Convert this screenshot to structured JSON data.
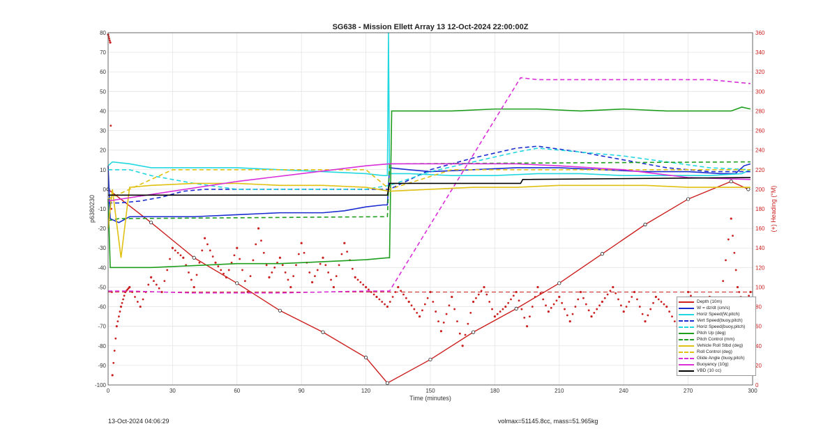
{
  "chart_data": {
    "type": "line",
    "title": "SG638 - Mission Ellett Array 13 12-Oct-2024 22:00:00Z",
    "xlabel": "Time (minutes)",
    "ylabel": "p6380230",
    "y2label": "(+) Heading (°M)",
    "xlim": [
      0,
      300
    ],
    "ylim": [
      -100,
      80
    ],
    "y2lim": [
      0,
      360
    ],
    "xticks": [
      0,
      30,
      60,
      90,
      120,
      150,
      180,
      210,
      240,
      270,
      300
    ],
    "yticks": [
      -100,
      -90,
      -80,
      -70,
      -60,
      -50,
      -40,
      -30,
      -20,
      -10,
      0,
      10,
      20,
      30,
      40,
      50,
      60,
      70,
      80
    ],
    "y2ticks": [
      0,
      20,
      40,
      60,
      80,
      100,
      120,
      140,
      160,
      180,
      200,
      220,
      240,
      260,
      280,
      300,
      320,
      340,
      360
    ],
    "grid": true,
    "legend_position": "bottom-right",
    "series": [
      {
        "name": "Depth (10m)",
        "color": "#cc1f1f",
        "style": "solid-markers",
        "x": [
          0,
          20,
          40,
          60,
          80,
          100,
          120,
          130,
          150,
          170,
          190,
          210,
          230,
          250,
          270,
          290,
          298
        ],
        "y": [
          0,
          -17,
          -35,
          -48,
          -62,
          -73,
          -86,
          -99,
          -87,
          -73,
          -61,
          -48,
          -33,
          -18,
          -5,
          4,
          0
        ]
      },
      {
        "name": "W = dz/dt (cm/s)",
        "color": "#1a2bd0",
        "style": "solid",
        "x": [
          0,
          1,
          5,
          10,
          20,
          30,
          40,
          60,
          80,
          100,
          110,
          120,
          128,
          130,
          131,
          140,
          150,
          170,
          190,
          210,
          230,
          250,
          270,
          285,
          292,
          296,
          299
        ],
        "y": [
          12,
          -15,
          -17,
          -14,
          -14,
          -14,
          -14,
          -13,
          -12,
          -12,
          -11,
          -9,
          -8,
          -8,
          11,
          10,
          9,
          10,
          11,
          11,
          10,
          9,
          9,
          8,
          8,
          12,
          13
        ]
      },
      {
        "name": "Horiz Speed(W,pitch)",
        "color": "#22d8e0",
        "style": "solid",
        "x": [
          0,
          2,
          10,
          20,
          40,
          60,
          80,
          100,
          120,
          128,
          130,
          130.5,
          131,
          140,
          160,
          180,
          200,
          220,
          240,
          260,
          280,
          295,
          299
        ],
        "y": [
          12,
          14,
          13,
          11,
          11,
          11,
          10,
          9,
          8,
          7,
          7,
          80,
          8,
          8,
          7,
          7,
          8,
          8,
          7,
          7,
          7,
          8,
          10
        ]
      },
      {
        "name": "Vert Speed(buoy,pitch)",
        "color": "#1a2bd0",
        "style": "dashed",
        "x": [
          0,
          5,
          15,
          25,
          35,
          45,
          60,
          80,
          100,
          120,
          131,
          150,
          170,
          190,
          200,
          220,
          240,
          260,
          280,
          299
        ],
        "y": [
          -7,
          -7,
          -6,
          -4,
          -1,
          0,
          0,
          0,
          0,
          0,
          0,
          10,
          16,
          21,
          22,
          19,
          15,
          11,
          9,
          9
        ]
      },
      {
        "name": "Horiz Speed(buoy,pitch)",
        "color": "#22d8e0",
        "style": "dashed",
        "x": [
          0,
          10,
          20,
          40,
          60,
          80,
          100,
          120,
          131,
          150,
          170,
          190,
          200,
          220,
          240,
          260,
          280,
          299
        ],
        "y": [
          10,
          10,
          7,
          3,
          0,
          0,
          0,
          0,
          2,
          9,
          14,
          19,
          21,
          19,
          17,
          14,
          11,
          10
        ]
      },
      {
        "name": "Pitch Up (deg)",
        "color": "#1d9e1d",
        "style": "solid",
        "x": [
          0,
          1,
          5,
          20,
          40,
          60,
          80,
          100,
          120,
          130,
          131,
          132,
          140,
          160,
          180,
          200,
          220,
          240,
          260,
          280,
          290,
          295,
          299
        ],
        "y": [
          -5,
          -40,
          -40,
          -40,
          -39,
          -38,
          -38,
          -37,
          -36,
          -35,
          -35,
          40,
          40,
          40,
          41,
          41,
          40,
          41,
          40,
          40,
          40,
          42,
          41
        ]
      },
      {
        "name": "Pitch Control (mm)",
        "color": "#1d9e1d",
        "style": "dashed",
        "x": [
          0,
          5,
          130,
          131,
          299
        ],
        "y": [
          -16,
          -15,
          -14,
          13,
          14
        ]
      },
      {
        "name": "Vehicle Roll Stbd (deg)",
        "color": "#e0c010",
        "style": "solid",
        "x": [
          0,
          2,
          6,
          10,
          20,
          40,
          60,
          80,
          100,
          120,
          131,
          150,
          170,
          190,
          210,
          230,
          250,
          270,
          290,
          299
        ],
        "y": [
          -20,
          0,
          -35,
          1,
          2,
          3,
          3,
          2,
          2,
          1,
          -1,
          0,
          1,
          1,
          2,
          2,
          2,
          1,
          1,
          1
        ]
      },
      {
        "name": "Roll Control (deg)",
        "color": "#e0c010",
        "style": "dashed",
        "x": [
          0,
          10,
          30,
          60,
          90,
          120,
          131,
          160,
          190,
          220,
          250,
          280,
          299
        ],
        "y": [
          -5,
          0,
          10,
          10,
          10,
          10,
          0,
          10,
          10,
          10,
          10,
          10,
          10
        ]
      },
      {
        "name": "Glide Angle (buoy,pitch)",
        "color": "#d92fd9",
        "style": "dashed",
        "x": [
          0,
          10,
          40,
          80,
          120,
          131,
          192,
          200,
          220,
          240,
          260,
          280,
          299
        ],
        "y": [
          -52,
          -52,
          -53,
          -53,
          -52,
          -52,
          57,
          56,
          56,
          56,
          56,
          56,
          54
        ]
      },
      {
        "name": "Buoyancy (10g)",
        "color": "#d92fd9",
        "style": "solid",
        "x": [
          0,
          30,
          60,
          90,
          120,
          131,
          160,
          190,
          210,
          240,
          270,
          299
        ],
        "y": [
          -6,
          -1,
          4,
          8,
          12,
          13,
          13,
          13,
          12,
          10,
          6,
          5
        ]
      },
      {
        "name": "VBD (10 cc)",
        "color": "#000000",
        "style": "solid",
        "x": [
          0,
          5,
          130,
          131,
          192,
          193,
          299
        ],
        "y": [
          -3,
          -3,
          -3,
          3,
          3,
          5,
          6
        ]
      }
    ],
    "heading_series": {
      "name": "Heading (°M)",
      "axis": "right",
      "color": "#cc1f1f",
      "style": "dots",
      "mean_line": 95,
      "x": [
        0,
        1,
        2,
        4,
        6,
        8,
        10,
        15,
        20,
        25,
        30,
        35,
        40,
        45,
        50,
        55,
        60,
        65,
        70,
        75,
        80,
        85,
        90,
        95,
        100,
        105,
        110,
        115,
        120,
        125,
        130,
        135,
        140,
        145,
        150,
        155,
        160,
        165,
        170,
        175,
        180,
        185,
        190,
        195,
        200,
        205,
        210,
        215,
        220,
        225,
        230,
        235,
        240,
        245,
        250,
        255,
        260,
        265,
        270,
        275,
        280,
        285,
        290,
        293,
        296,
        299
      ],
      "y": [
        358,
        350,
        10,
        60,
        80,
        95,
        100,
        80,
        110,
        95,
        140,
        130,
        100,
        150,
        125,
        110,
        140,
        95,
        160,
        110,
        130,
        100,
        145,
        105,
        130,
        100,
        145,
        110,
        100,
        90,
        80,
        100,
        85,
        70,
        95,
        55,
        90,
        40,
        85,
        100,
        70,
        80,
        95,
        60,
        100,
        75,
        90,
        65,
        95,
        70,
        85,
        100,
        75,
        95,
        65,
        90,
        80,
        60,
        95,
        80,
        90,
        85,
        170,
        100,
        80,
        95
      ]
    }
  },
  "footer": {
    "date": "13-Oct-2024 04:06:29",
    "volume_mass": "volmax=51145.8cc, mass=51.965kg"
  }
}
